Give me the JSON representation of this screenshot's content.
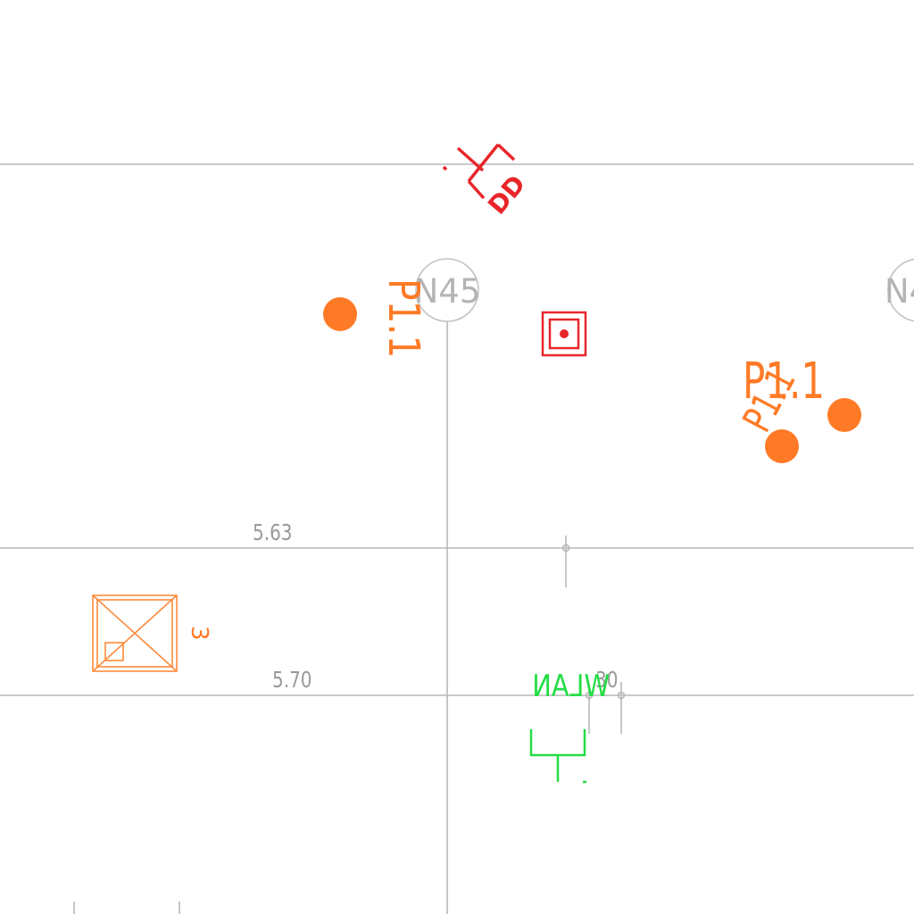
{
  "plan": {
    "grid_bubbles": [
      {
        "id": "N45",
        "label": "N45"
      },
      {
        "id": "N4",
        "label": "N4"
      }
    ],
    "dimensions": [
      {
        "id": "dim-5-63",
        "value": "5.63"
      },
      {
        "id": "dim-5-70",
        "value": "5.70"
      },
      {
        "id": "dim-30",
        "value": "30"
      }
    ],
    "tags": [
      {
        "id": "p11-vertical",
        "text": "P1.1"
      },
      {
        "id": "p11-horizontal",
        "text": "P1.1"
      },
      {
        "id": "p11-diagonal",
        "text": "P1.1"
      },
      {
        "id": "wlan",
        "text": "WLAN"
      },
      {
        "id": "dd",
        "text": "DD"
      },
      {
        "id": "three",
        "text": "3"
      }
    ],
    "colors": {
      "grid_line": "#b8b8b8",
      "bubble": "#c4c4c4",
      "dimension_text": "#9a9a9a",
      "orange": "#ff7a26",
      "red": "#e8262a",
      "green": "#22dd44"
    },
    "icons": [
      "orange-dot-icon",
      "red-target-icon",
      "red-breaker-symbol-icon",
      "orange-crossed-box-icon",
      "green-wlan-outlet-icon"
    ]
  }
}
